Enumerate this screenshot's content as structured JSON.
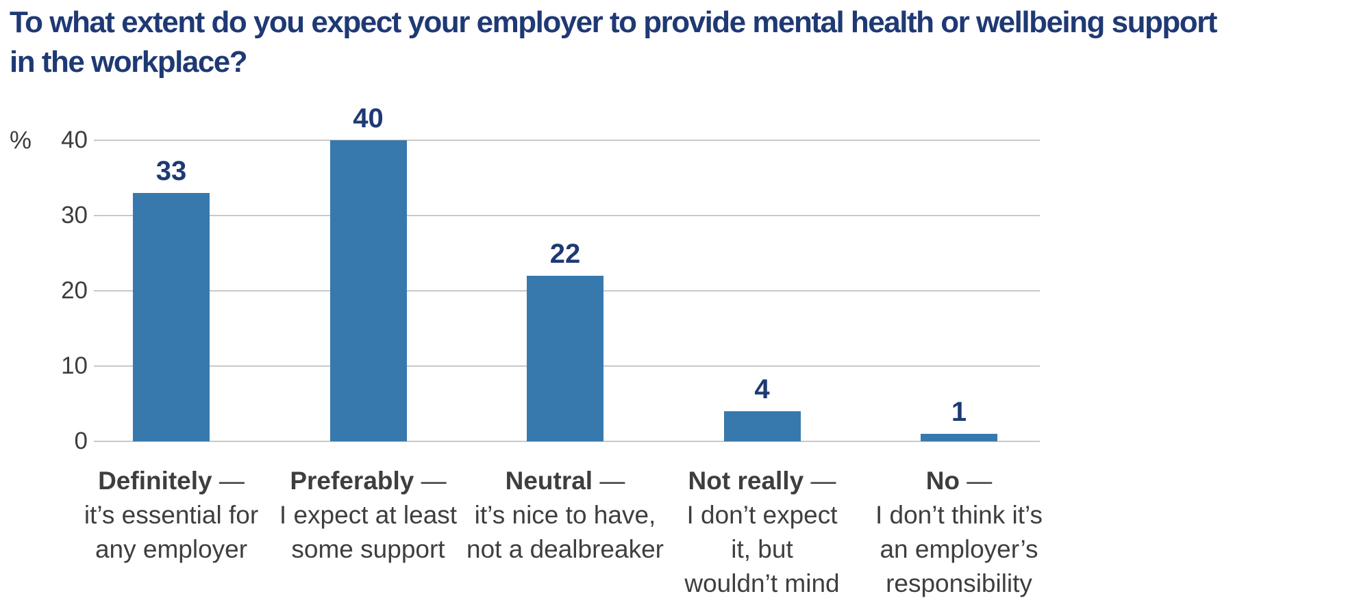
{
  "title": {
    "lines": [
      "To what extent do you expect your employer to provide mental health or wellbeing support",
      "in the workplace?"
    ]
  },
  "chart_data": {
    "type": "bar",
    "title": "To what extent do you expect your employer to provide mental health or wellbeing support in the workplace?",
    "ylabel": "%",
    "xlabel": "",
    "ylim": [
      0,
      40
    ],
    "yticks": [
      0,
      10,
      20,
      30,
      40
    ],
    "grid": true,
    "legend": false,
    "values": [
      33,
      40,
      22,
      4,
      1
    ],
    "value_labels": [
      "33",
      "40",
      "22",
      "4",
      "1"
    ],
    "dash": "—",
    "categories": [
      {
        "label": "Definitely",
        "description_lines": [
          "it’s essential for",
          "any employer"
        ]
      },
      {
        "label": "Preferably",
        "description_lines": [
          "I expect at least",
          "some support"
        ]
      },
      {
        "label": "Neutral",
        "description_lines": [
          "it’s nice to have,",
          "not a dealbreaker"
        ]
      },
      {
        "label": "Not really",
        "description_lines": [
          "I don’t expect",
          "it, but",
          "wouldn’t mind"
        ]
      },
      {
        "label": "No",
        "description_lines": [
          "I don’t think it’s",
          "an employer’s",
          "responsibility"
        ]
      }
    ],
    "colors": {
      "bar": "#3779ad",
      "title_text": "#1e3973",
      "value_text": "#1e3973",
      "axis_text": "#3d3d3d",
      "category_text": "#3e3e3e",
      "gridline": "#c8c8c8"
    }
  }
}
